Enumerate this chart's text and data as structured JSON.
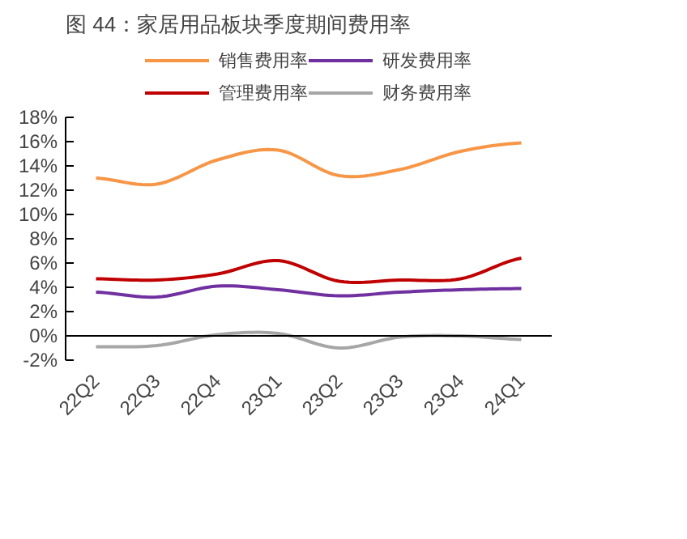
{
  "chart_data": {
    "type": "line",
    "title": "图 44：家居用品板块季度期间费用率",
    "categories": [
      "22Q2",
      "22Q3",
      "22Q4",
      "23Q1",
      "23Q2",
      "23Q3",
      "23Q4",
      "24Q1"
    ],
    "series": [
      {
        "name": "销售费用率",
        "color": "#f79646",
        "values": [
          13.0,
          12.5,
          14.5,
          15.3,
          13.2,
          13.7,
          15.2,
          15.9
        ]
      },
      {
        "name": "管理费用率",
        "color": "#c00000",
        "values": [
          4.7,
          4.6,
          5.1,
          6.2,
          4.5,
          4.6,
          4.7,
          6.4
        ]
      },
      {
        "name": "研发费用率",
        "color": "#7030a0",
        "values": [
          3.6,
          3.2,
          4.1,
          3.8,
          3.3,
          3.6,
          3.8,
          3.9
        ]
      },
      {
        "name": "财务费用率",
        "color": "#a6a6a6",
        "values": [
          -0.9,
          -0.8,
          0.1,
          0.2,
          -1.0,
          -0.1,
          0.0,
          -0.3
        ]
      }
    ],
    "ylim": [
      -2,
      18
    ],
    "yticks": [
      {
        "value": -2,
        "label": "-2%"
      },
      {
        "value": 0,
        "label": "0%"
      },
      {
        "value": 2,
        "label": "2%"
      },
      {
        "value": 4,
        "label": "4%"
      },
      {
        "value": 6,
        "label": "6%"
      },
      {
        "value": 8,
        "label": "8%"
      },
      {
        "value": 10,
        "label": "10%"
      },
      {
        "value": 12,
        "label": "12%"
      },
      {
        "value": 14,
        "label": "14%"
      },
      {
        "value": 16,
        "label": "16%"
      },
      {
        "value": 18,
        "label": "18%"
      }
    ],
    "grid": false,
    "legend": "top",
    "marker": "none",
    "line_style": "solid"
  }
}
